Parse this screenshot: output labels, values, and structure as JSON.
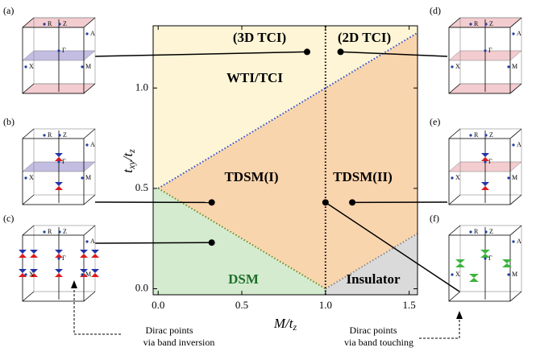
{
  "chart_data": {
    "type": "phase-diagram",
    "x_label": [
      "M/t",
      "z"
    ],
    "y_label": [
      "t",
      "xy",
      "/t",
      "z"
    ],
    "xlim": [
      -0.03,
      1.55
    ],
    "ylim": [
      -0.03,
      1.31
    ],
    "xticks": [
      {
        "value": 0,
        "label": "0.0"
      },
      {
        "value": 0.5,
        "label": "0.5"
      },
      {
        "value": 1,
        "label": "1.0"
      },
      {
        "value": 1.5,
        "label": "1.5"
      }
    ],
    "yticks": [
      {
        "value": 0,
        "label": "0.0"
      },
      {
        "value": 0.5,
        "label": "0.5"
      },
      {
        "value": 1,
        "label": "1.0"
      }
    ],
    "regions": [
      {
        "color": "#fdf5d6",
        "x": [
          -0.03,
          0,
          1.55,
          1.55,
          -0.03
        ],
        "y": [
          0.5,
          0.5,
          1.275,
          1.31,
          1.31
        ]
      },
      {
        "color": "#f9d5ae",
        "x": [
          0,
          1.55,
          1.55,
          1
        ],
        "y": [
          0.5,
          1.275,
          0.275,
          0
        ]
      },
      {
        "color": "#d4ebcf",
        "x": [
          -0.03,
          0,
          1,
          1,
          -0.03
        ],
        "y": [
          0.5,
          0.5,
          0,
          -0.03,
          -0.03
        ]
      },
      {
        "color": "#dadada",
        "x": [
          1,
          1.55,
          1.55,
          1
        ],
        "y": [
          0,
          0.275,
          -0.03,
          -0.03
        ]
      }
    ],
    "boundaries": [
      {
        "color": "#2a4fd6",
        "x": [
          0,
          1.55
        ],
        "y": [
          0.5,
          1.275
        ]
      },
      {
        "color": "#6b8e23",
        "x": [
          0,
          1
        ],
        "y": [
          0.5,
          0
        ]
      },
      {
        "color": "#888888",
        "x": [
          1,
          1.55
        ],
        "y": [
          0,
          0.275
        ]
      },
      {
        "color": "#000000",
        "x": [
          1,
          1
        ],
        "y": [
          -0.03,
          1.31
        ]
      }
    ],
    "points": {
      "x": [
        0.89,
        1.09,
        0.32,
        1.0,
        1.16,
        0.32
      ],
      "y": [
        1.18,
        1.18,
        0.43,
        0.43,
        0.43,
        0.23
      ]
    },
    "region_labels": [
      "(3D TCI)",
      "(2D TCI)",
      "WTI/TCI",
      "TDSM(I)",
      "TDSM(II)",
      "DSM",
      "Insulator"
    ],
    "panel_labels": [
      "(a)",
      "(b)",
      "(c)",
      "(d)",
      "(e)",
      "(f)"
    ],
    "bz_labels": [
      "R",
      "Z",
      "A",
      "Γ",
      "X",
      "M"
    ],
    "annotations": [
      [
        "Dirac points",
        "via band inversion"
      ],
      [
        "Dirac points",
        "via band touching"
      ]
    ]
  }
}
